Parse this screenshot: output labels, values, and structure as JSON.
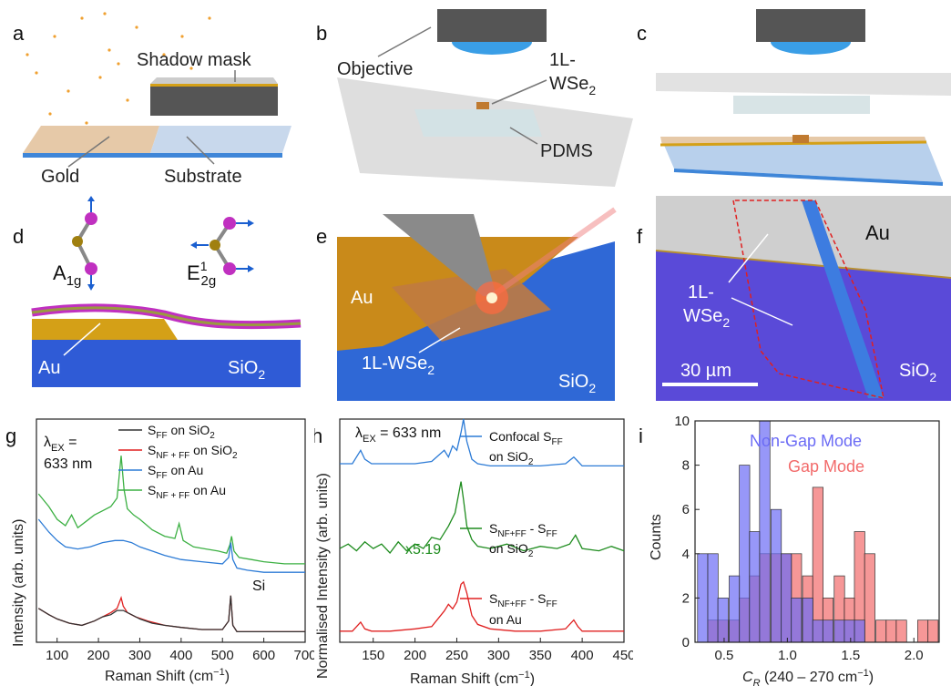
{
  "panels": {
    "a": {
      "letter": "a",
      "shadow_mask": "Shadow mask",
      "gold": "Gold",
      "substrate": "Substrate"
    },
    "b": {
      "letter": "b",
      "objective": "Objective",
      "wse2_1": "1L-",
      "wse2_2": "WSe",
      "wse2_sub": "2",
      "pdms": "PDMS"
    },
    "c": {
      "letter": "c"
    },
    "d": {
      "letter": "d",
      "a1g_main": "A",
      "a1g_sub": "1g",
      "e2g_main": "E",
      "e2g_sup": "1",
      "e2g_sub": "2g",
      "au": "Au",
      "sio2_main": "SiO",
      "sio2_sub": "2"
    },
    "e": {
      "letter": "e",
      "au": "Au",
      "wse2_main": "1L-WSe",
      "wse2_sub": "2",
      "sio2_main": "SiO",
      "sio2_sub": "2"
    },
    "f": {
      "letter": "f",
      "au": "Au",
      "wse2_1": "1L-",
      "wse2_2": "WSe",
      "wse2_sub": "2",
      "scale": "30 µm",
      "sio2_main": "SiO",
      "sio2_sub": "2"
    },
    "g": {
      "letter": "g"
    },
    "h": {
      "letter": "h"
    },
    "i": {
      "letter": "i"
    }
  },
  "colors": {
    "gold": "#d4a017",
    "substrate_blue": "#3f86d8",
    "sio2_blue": "#2f5bd6",
    "trace_black": "#333333",
    "trace_red": "#e02020",
    "trace_blue": "#2c7bd6",
    "trace_green": "#3cb043",
    "nongap": "#6b6bf5",
    "gap": "#f26b6b",
    "h_green": "#1e8c1e"
  },
  "chart_data": [
    {
      "type": "line",
      "panel": "g",
      "annotation_lambda": "λ",
      "annotation_lambda_sub": "EX",
      "annotation_lambda_eq": " =",
      "annotation_lambda_val": "633 nm",
      "annotation_si": "Si",
      "xlabel": "Raman Shift (cm",
      "xlabel_sup": "−1",
      "xlabel_end": ")",
      "ylabel": "Intensity (arb. units)",
      "xlim": [
        50,
        700
      ],
      "xticks": [
        100,
        200,
        300,
        400,
        500,
        600,
        700
      ],
      "legend": [
        {
          "main": "S",
          "sub": "FF",
          "rest": " on SiO",
          "rest_sub": "2",
          "color": "#333333"
        },
        {
          "main": "S",
          "sub": "NF + FF",
          "rest": " on SiO",
          "rest_sub": "2",
          "color": "#e02020"
        },
        {
          "main": "S",
          "sub": "FF",
          "rest": " on Au",
          "rest_sub": "",
          "color": "#2c7bd6"
        },
        {
          "main": "S",
          "sub": "NF + FF",
          "rest": " on Au",
          "rest_sub": "",
          "color": "#3cb043"
        }
      ],
      "series": [
        {
          "color": "#3cb043",
          "x": [
            55,
            80,
            100,
            120,
            135,
            150,
            170,
            190,
            210,
            230,
            245,
            255,
            262,
            270,
            285,
            300,
            330,
            360,
            385,
            395,
            405,
            430,
            460,
            490,
            510,
            518,
            522,
            528,
            540,
            570,
            600,
            650,
            700
          ],
          "y": [
            0.7,
            0.64,
            0.58,
            0.55,
            0.6,
            0.54,
            0.57,
            0.6,
            0.62,
            0.64,
            0.68,
            0.88,
            0.72,
            0.63,
            0.6,
            0.58,
            0.53,
            0.5,
            0.49,
            0.56,
            0.48,
            0.45,
            0.44,
            0.43,
            0.42,
            0.46,
            0.5,
            0.43,
            0.4,
            0.39,
            0.38,
            0.37,
            0.37
          ]
        },
        {
          "color": "#2c7bd6",
          "x": [
            55,
            80,
            100,
            120,
            150,
            180,
            210,
            240,
            260,
            280,
            300,
            330,
            360,
            400,
            450,
            500,
            515,
            520,
            525,
            535,
            560,
            600,
            650,
            700
          ],
          "y": [
            0.58,
            0.52,
            0.48,
            0.45,
            0.44,
            0.45,
            0.47,
            0.48,
            0.48,
            0.47,
            0.45,
            0.43,
            0.41,
            0.39,
            0.38,
            0.37,
            0.4,
            0.47,
            0.39,
            0.35,
            0.34,
            0.33,
            0.33,
            0.33
          ]
        },
        {
          "color": "#e02020",
          "x": [
            55,
            80,
            100,
            130,
            160,
            190,
            210,
            230,
            245,
            255,
            260,
            270,
            290,
            320,
            360,
            400,
            450,
            500,
            515,
            520,
            525,
            535,
            560,
            600,
            650,
            700
          ],
          "y": [
            0.16,
            0.13,
            0.11,
            0.09,
            0.08,
            0.1,
            0.12,
            0.14,
            0.16,
            0.21,
            0.17,
            0.14,
            0.12,
            0.1,
            0.08,
            0.07,
            0.06,
            0.06,
            0.1,
            0.22,
            0.08,
            0.05,
            0.05,
            0.05,
            0.05,
            0.05
          ]
        },
        {
          "color": "#333333",
          "x": [
            55,
            80,
            100,
            130,
            160,
            190,
            210,
            230,
            245,
            260,
            280,
            300,
            330,
            360,
            400,
            450,
            500,
            515,
            520,
            525,
            535,
            560,
            600,
            650,
            700
          ],
          "y": [
            0.16,
            0.13,
            0.11,
            0.09,
            0.08,
            0.1,
            0.12,
            0.13,
            0.15,
            0.15,
            0.13,
            0.11,
            0.09,
            0.08,
            0.07,
            0.06,
            0.06,
            0.1,
            0.22,
            0.08,
            0.05,
            0.05,
            0.05,
            0.05,
            0.05
          ]
        }
      ]
    },
    {
      "type": "line",
      "panel": "h",
      "annotation_lambda": "λ",
      "annotation_lambda_sub": "EX",
      "annotation_lambda_val": " = 633 nm",
      "annotation_scale": "x5.19",
      "xlabel": "Raman Shift (cm",
      "xlabel_sup": "−1",
      "xlabel_end": ")",
      "ylabel": "Normalised Intensity (arb. units)",
      "xlim": [
        110,
        450
      ],
      "xticks": [
        150,
        200,
        250,
        300,
        350,
        400,
        450
      ],
      "labels": [
        {
          "l1_main": "Confocal S",
          "l1_sub": "FF",
          "l2_main": "on SiO",
          "l2_sub": "2",
          "color": "#2c7bd6"
        },
        {
          "l1_main": "S",
          "l1_sub": "NF+FF",
          "l1_mid": " - S",
          "l1_sub2": "FF",
          "l2_main": "on SiO",
          "l2_sub": "2",
          "color": "#1e8c1e"
        },
        {
          "l1_main": "S",
          "l1_sub": "NF+FF",
          "l1_mid": " - S",
          "l1_sub2": "FF",
          "l2_main": "on Au",
          "l2_sub": "",
          "color": "#e02020"
        }
      ],
      "series": [
        {
          "color": "#2c7bd6",
          "x": [
            110,
            125,
            135,
            140,
            148,
            170,
            200,
            220,
            235,
            240,
            245,
            250,
            255,
            258,
            262,
            268,
            275,
            290,
            320,
            350,
            380,
            390,
            395,
            400,
            420,
            450
          ],
          "y": [
            0.8,
            0.8,
            0.86,
            0.82,
            0.8,
            0.8,
            0.8,
            0.81,
            0.86,
            0.83,
            0.88,
            0.86,
            0.94,
            1.0,
            0.9,
            0.82,
            0.8,
            0.79,
            0.79,
            0.79,
            0.8,
            0.83,
            0.81,
            0.79,
            0.79,
            0.79
          ]
        },
        {
          "color": "#1e8c1e",
          "x": [
            110,
            120,
            130,
            140,
            150,
            160,
            170,
            180,
            190,
            200,
            210,
            220,
            230,
            240,
            248,
            255,
            258,
            262,
            268,
            275,
            290,
            310,
            330,
            350,
            370,
            385,
            392,
            400,
            420,
            435,
            450
          ],
          "y": [
            0.42,
            0.44,
            0.41,
            0.45,
            0.42,
            0.44,
            0.4,
            0.45,
            0.41,
            0.44,
            0.42,
            0.47,
            0.46,
            0.52,
            0.58,
            0.72,
            0.64,
            0.52,
            0.46,
            0.43,
            0.42,
            0.44,
            0.41,
            0.43,
            0.42,
            0.44,
            0.48,
            0.42,
            0.41,
            0.43,
            0.41
          ]
        },
        {
          "color": "#e02020",
          "x": [
            110,
            125,
            135,
            140,
            148,
            170,
            200,
            220,
            235,
            240,
            245,
            250,
            255,
            258,
            262,
            268,
            275,
            290,
            320,
            350,
            380,
            390,
            395,
            400,
            420,
            450
          ],
          "y": [
            0.05,
            0.05,
            0.09,
            0.06,
            0.05,
            0.05,
            0.06,
            0.07,
            0.14,
            0.17,
            0.15,
            0.18,
            0.26,
            0.27,
            0.22,
            0.12,
            0.08,
            0.06,
            0.05,
            0.05,
            0.06,
            0.1,
            0.07,
            0.05,
            0.05,
            0.05
          ]
        }
      ]
    },
    {
      "type": "bar",
      "panel": "i",
      "xlabel_main": "C",
      "xlabel_sub": "R",
      "xlabel_rest": " (240 – 270 cm",
      "xlabel_sup": "−1",
      "xlabel_end": ")",
      "ylabel": "Counts",
      "xlim": [
        0.27,
        2.2
      ],
      "ylim": [
        0,
        10
      ],
      "xticks": [
        0.5,
        1.0,
        1.5,
        2.0
      ],
      "yticks": [
        0,
        2,
        4,
        6,
        8,
        10
      ],
      "bin_width": 0.0825,
      "legend": [
        {
          "name": "Non-Gap Mode",
          "color": "#6b6bf5"
        },
        {
          "name": "Gap Mode",
          "color": "#f26b6b"
        }
      ],
      "series": [
        {
          "name": "Non-Gap Mode",
          "color": "#6b6bf5",
          "bin_starts": [
            0.29,
            0.37,
            0.45,
            0.54,
            0.62,
            0.7,
            0.78,
            0.87,
            0.95,
            1.03,
            1.12,
            1.2,
            1.28,
            1.37,
            1.45,
            1.53
          ],
          "values": [
            4,
            4,
            2,
            3,
            8,
            5,
            10,
            6,
            4,
            2,
            2,
            1,
            1,
            1,
            1,
            1
          ]
        },
        {
          "name": "Gap Mode",
          "color": "#f26b6b",
          "bin_starts": [
            0.37,
            0.45,
            0.54,
            0.62,
            0.7,
            0.78,
            0.87,
            0.95,
            1.03,
            1.12,
            1.2,
            1.28,
            1.37,
            1.45,
            1.53,
            1.61,
            1.7,
            1.78,
            1.86,
            1.94,
            2.03,
            2.11
          ],
          "values": [
            1,
            1,
            1,
            2,
            3,
            4,
            4,
            4,
            4,
            3,
            7,
            2,
            3,
            2,
            5,
            4,
            1,
            1,
            1,
            0,
            1,
            1
          ]
        }
      ]
    }
  ]
}
